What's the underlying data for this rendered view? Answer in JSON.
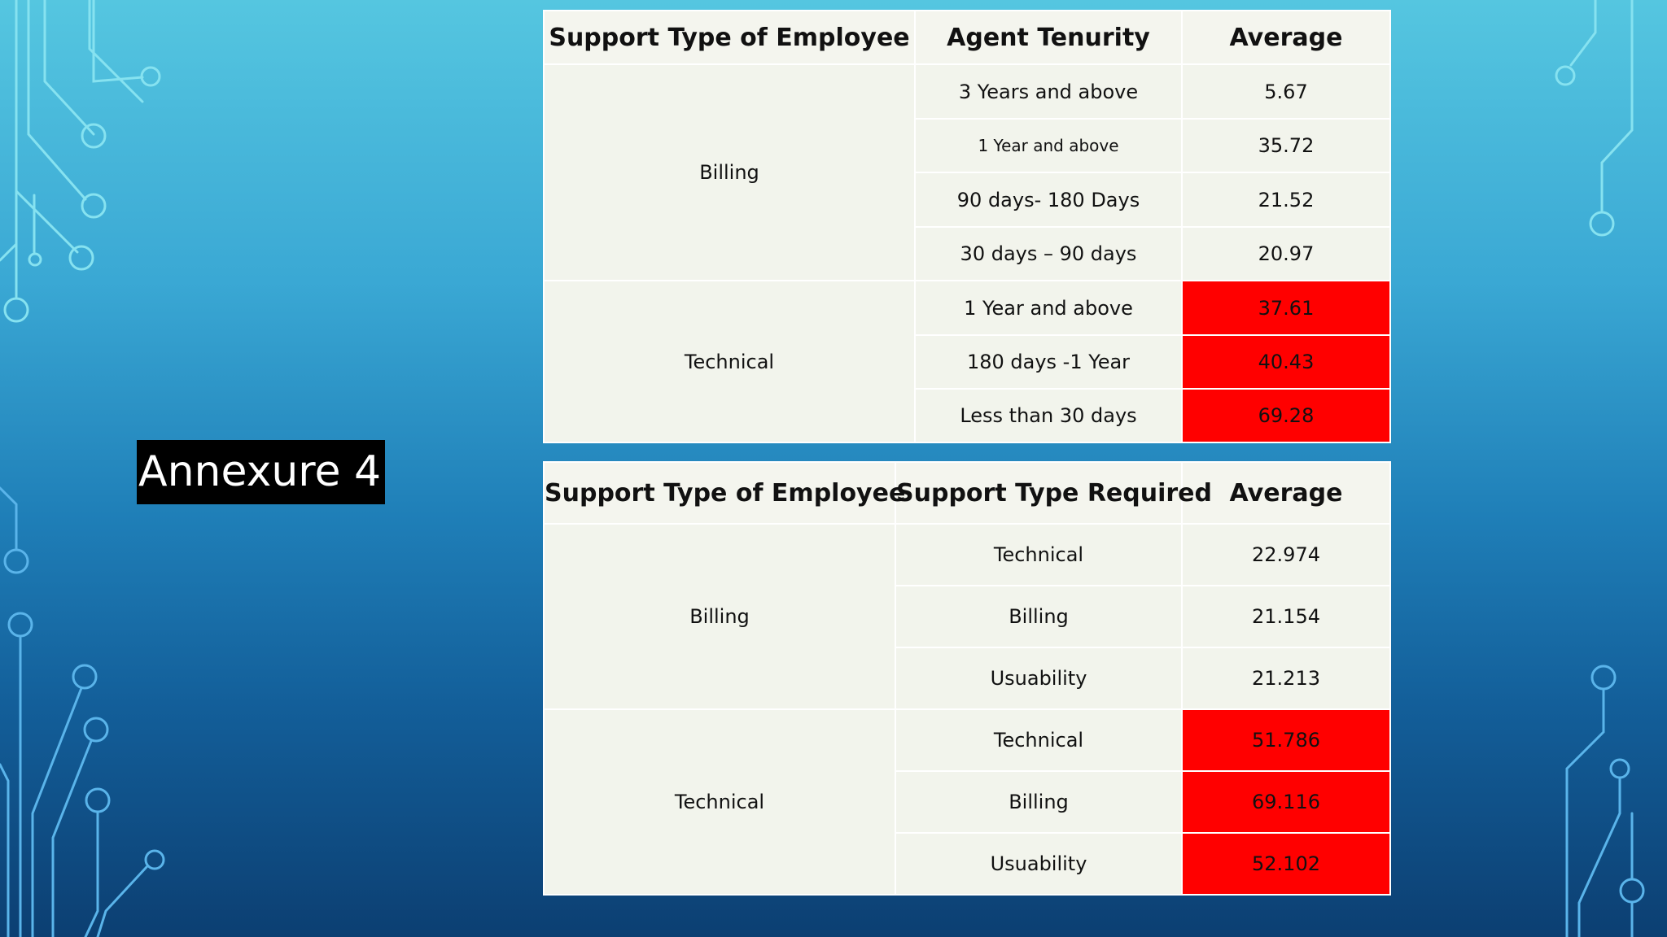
{
  "slide": {
    "title": "Annexure 4"
  },
  "colors": {
    "highlight": "#ff0000",
    "cell_background": "#f2f4ec",
    "title_background": "#000000"
  },
  "table1": {
    "headers": [
      "Support Type of Employee",
      "Agent Tenurity",
      "Average"
    ],
    "groups": [
      {
        "support_type": "Billing",
        "rows": [
          {
            "tenure": "3 Years and above",
            "average": "5.67"
          },
          {
            "tenure": "1 Year and above",
            "average": "35.72"
          },
          {
            "tenure": "90 days- 180 Days",
            "average": "21.52"
          },
          {
            "tenure": "30 days – 90 days",
            "average": "20.97"
          }
        ]
      },
      {
        "support_type": "Technical",
        "rows": [
          {
            "tenure": "1 Year and above",
            "average": "37.61"
          },
          {
            "tenure": "180 days -1 Year",
            "average": "40.43"
          },
          {
            "tenure": "Less than 30 days",
            "average": "69.28"
          }
        ]
      }
    ]
  },
  "table2": {
    "headers": [
      "Support Type of Employee",
      "Support Type Required",
      "Average"
    ],
    "groups": [
      {
        "support_type": "Billing",
        "rows": [
          {
            "required": "Technical",
            "average": "22.974"
          },
          {
            "required": "Billing",
            "average": "21.154"
          },
          {
            "required": "Usuability",
            "average": "21.213"
          }
        ]
      },
      {
        "support_type": "Technical",
        "rows": [
          {
            "required": "Technical",
            "average": "51.786"
          },
          {
            "required": "Billing",
            "average": "69.116"
          },
          {
            "required": "Usuability",
            "average": "52.102"
          }
        ]
      }
    ]
  }
}
